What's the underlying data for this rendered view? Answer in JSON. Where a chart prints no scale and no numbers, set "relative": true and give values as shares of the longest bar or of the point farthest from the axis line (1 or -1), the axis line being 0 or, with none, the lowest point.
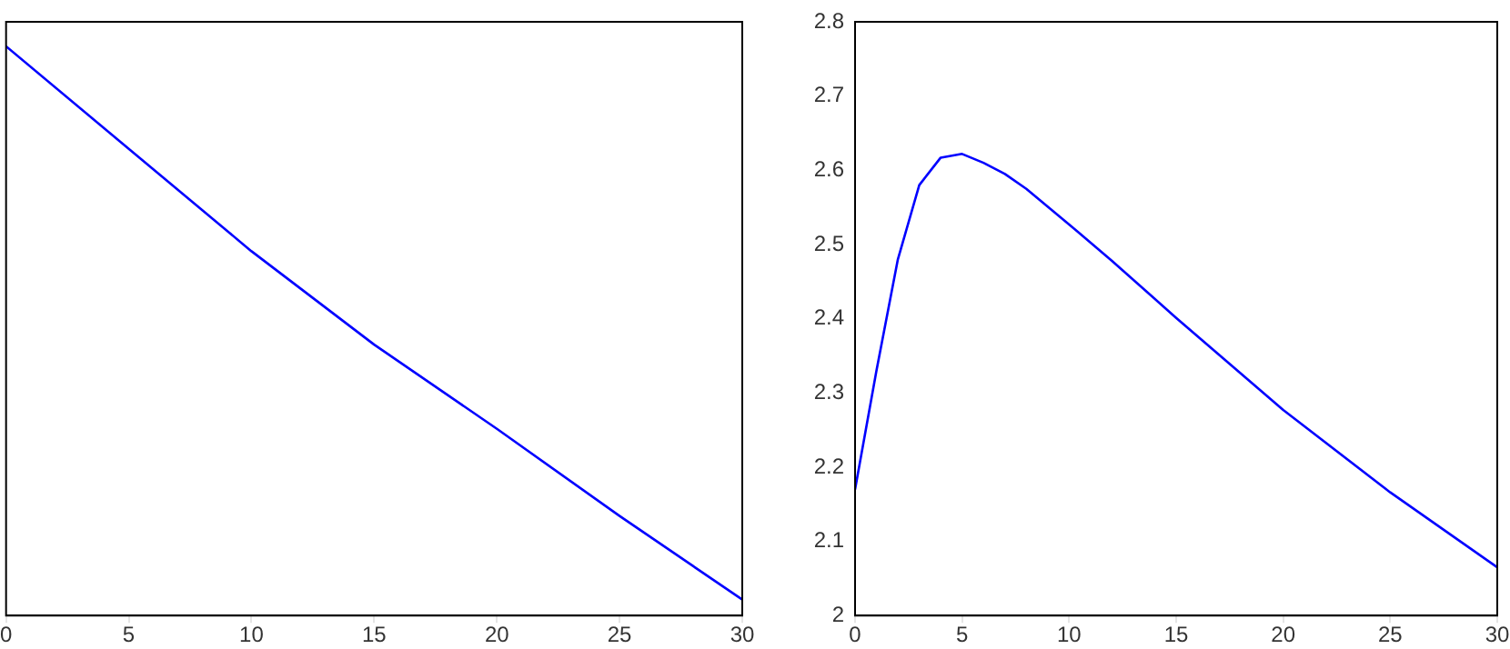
{
  "chart_data": [
    {
      "type": "line",
      "relative": true,
      "tick_labels": "x",
      "xlim": [
        0,
        30
      ],
      "xticks": [
        0,
        5,
        10,
        15,
        20,
        25,
        30
      ],
      "x": [
        0,
        5,
        10,
        15,
        20,
        25,
        30
      ],
      "series": [
        {
          "color": "#0000ff",
          "values": [
            1,
            0.82,
            0.64,
            0.476,
            0.328,
            0.175,
            0.028
          ]
        }
      ]
    },
    {
      "type": "line",
      "xlim": [
        0,
        30
      ],
      "xticks": [
        0,
        5,
        10,
        15,
        20,
        25,
        30
      ],
      "ylim": [
        2,
        2.8
      ],
      "yticks": [
        2,
        2.1,
        2.2,
        2.3,
        2.4,
        2.5,
        2.6,
        2.7,
        2.8
      ],
      "x": [
        0,
        1,
        2,
        3,
        4,
        5,
        6,
        7,
        8,
        10,
        12,
        15,
        20,
        25,
        30
      ],
      "series": [
        {
          "color": "#0000ff",
          "values": [
            2.17,
            2.33,
            2.48,
            2.58,
            2.617,
            2.622,
            2.61,
            2.595,
            2.575,
            2.527,
            2.478,
            2.401,
            2.277,
            2.166,
            2.065
          ]
        }
      ]
    }
  ]
}
